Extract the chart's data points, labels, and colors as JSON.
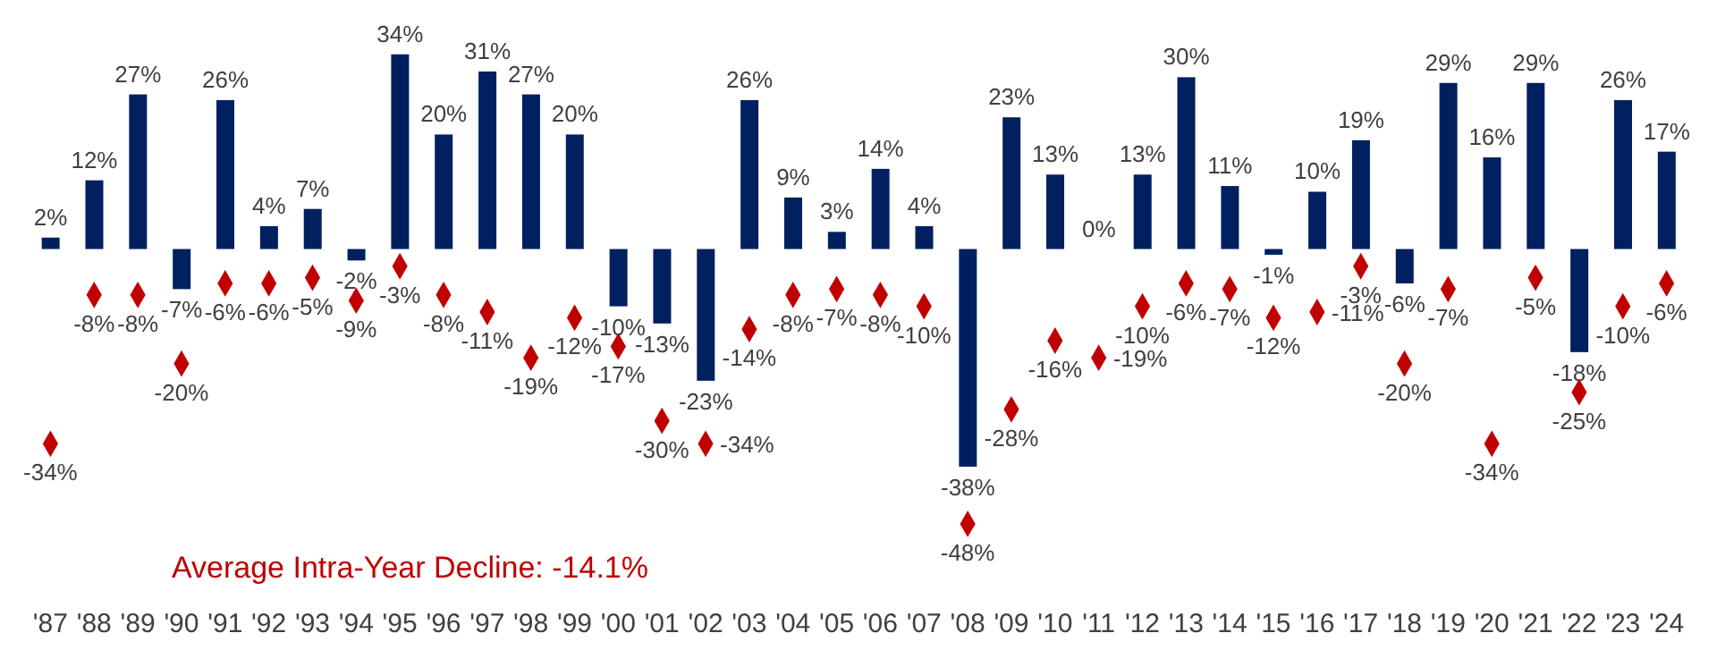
{
  "chart_data": {
    "type": "bar",
    "categories": [
      "'87",
      "'88",
      "'89",
      "'90",
      "'91",
      "'92",
      "'93",
      "'94",
      "'95",
      "'96",
      "'97",
      "'98",
      "'99",
      "'00",
      "'01",
      "'02",
      "'03",
      "'04",
      "'05",
      "'06",
      "'07",
      "'08",
      "'09",
      "'10",
      "'11",
      "'12",
      "'13",
      "'14",
      "'15",
      "'16",
      "'17",
      "'18",
      "'19",
      "'20",
      "'21",
      "'22",
      "'23",
      "'24"
    ],
    "series": [
      {
        "color": "#002060",
        "values": [
          2,
          12,
          27,
          -7,
          26,
          4,
          7,
          -2,
          34,
          20,
          31,
          27,
          20,
          -10,
          -13,
          -23,
          26,
          9,
          3,
          14,
          4,
          -38,
          23,
          13,
          0,
          13,
          30,
          11,
          -1,
          10,
          19,
          -6,
          29,
          16,
          29,
          -18,
          26,
          17
        ],
        "value_labels": [
          "2%",
          "12%",
          "27%",
          "-7%",
          "26%",
          "4%",
          "7%",
          "-2%",
          "34%",
          "20%",
          "31%",
          "27%",
          "20%",
          "-10%",
          "-13%",
          "-23%",
          "26%",
          "9%",
          "3%",
          "14%",
          "4%",
          "-38%",
          "23%",
          "13%",
          "0%",
          "13%",
          "30%",
          "11%",
          "-1%",
          "10%",
          "19%",
          "-6%",
          "29%",
          "16%",
          "29%",
          "-18%",
          "26%",
          "17%"
        ]
      },
      {
        "type": "scatter",
        "color": "#c00000",
        "marker": "diamond",
        "values": [
          -34,
          -8,
          -8,
          -20,
          -6,
          -6,
          -5,
          -9,
          -3,
          -8,
          -11,
          -19,
          -12,
          -17,
          -30,
          -34,
          -14,
          -8,
          -7,
          -8,
          -10,
          -48,
          -28,
          -16,
          -19,
          -10,
          -6,
          -7,
          -12,
          -11,
          -3,
          -20,
          -7,
          -34,
          -5,
          -25,
          -10,
          -6
        ],
        "value_labels": [
          "-34%",
          "-8%",
          "-8%",
          "-20%",
          "-6%",
          "-6%",
          "-5%",
          "-9%",
          "-3%",
          "-8%",
          "-11%",
          "-19%",
          "-12%",
          "-17%",
          "-30%",
          "-34%",
          "-14%",
          "-8%",
          "-7%",
          "-8%",
          "-10%",
          "-48%",
          "-28%",
          "-16%",
          "-19%",
          "-10%",
          "-6%",
          "-7%",
          "-12%",
          "-11%",
          "-3%",
          "-20%",
          "-7%",
          "-34%",
          "-5%",
          "-25%",
          "-10%",
          "-6%"
        ]
      }
    ],
    "annotations": [
      "Average Intra-Year Decline: -14.1%"
    ],
    "grid": false
  }
}
